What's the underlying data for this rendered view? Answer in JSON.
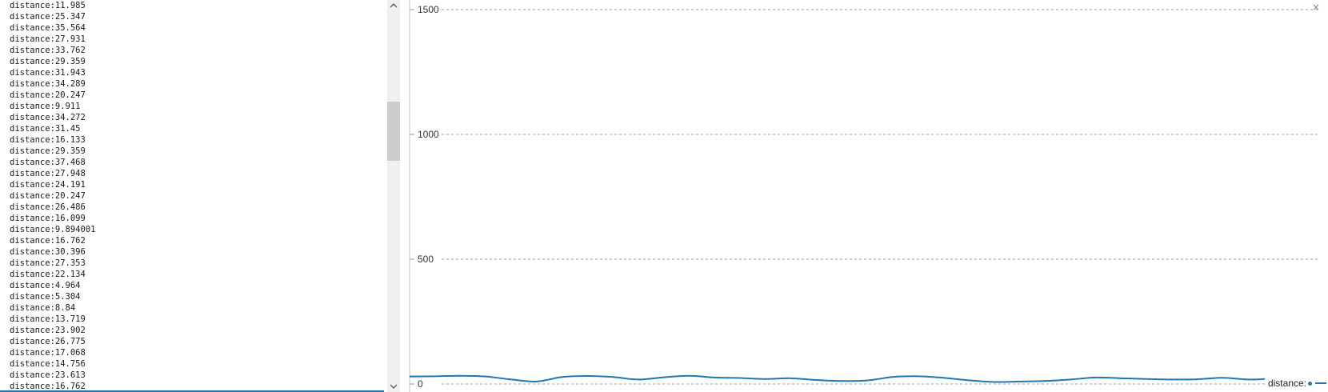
{
  "serial_monitor": {
    "lines": [
      "distance:11.985",
      "distance:25.347",
      "distance:35.564",
      "distance:27.931",
      "distance:33.762",
      "distance:29.359",
      "distance:31.943",
      "distance:34.289",
      "distance:20.247",
      "distance:9.911",
      "distance:34.272",
      "distance:31.45",
      "distance:16.133",
      "distance:29.359",
      "distance:37.468",
      "distance:27.948",
      "distance:24.191",
      "distance:20.247",
      "distance:26.486",
      "distance:16.099",
      "distance:9.894001",
      "distance:16.762",
      "distance:30.396",
      "distance:27.353",
      "distance:22.134",
      "distance:4.964",
      "distance:5.304",
      "distance:8.84",
      "distance:13.719",
      "distance:23.902",
      "distance:26.775",
      "distance:17.068",
      "distance:14.756",
      "distance:23.613",
      "distance:16.762"
    ]
  },
  "scrollbar": {
    "up_icon": "chevron-up-icon",
    "down_icon": "chevron-down-icon",
    "thumb_position_fraction": 0.26
  },
  "plotter": {
    "close_glyph": "×",
    "legend_label": "distance:",
    "line_color": "#1f77b4"
  },
  "chart_data": {
    "type": "line",
    "title": "",
    "xlabel": "",
    "ylabel": "",
    "ylim": [
      0,
      1500
    ],
    "yticks": [
      "0",
      "500",
      "1000",
      "1500"
    ],
    "grid": true,
    "legend": "bottom-right",
    "series": [
      {
        "name": "distance:",
        "values": [
          30,
          31,
          33,
          30,
          18,
          10,
          28,
          32,
          28,
          18,
          27,
          33,
          26,
          24,
          20,
          23,
          16,
          12,
          14,
          28,
          31,
          25,
          15,
          8,
          10,
          12,
          18,
          26,
          23,
          20,
          18,
          19,
          25,
          18,
          22
        ]
      }
    ]
  }
}
